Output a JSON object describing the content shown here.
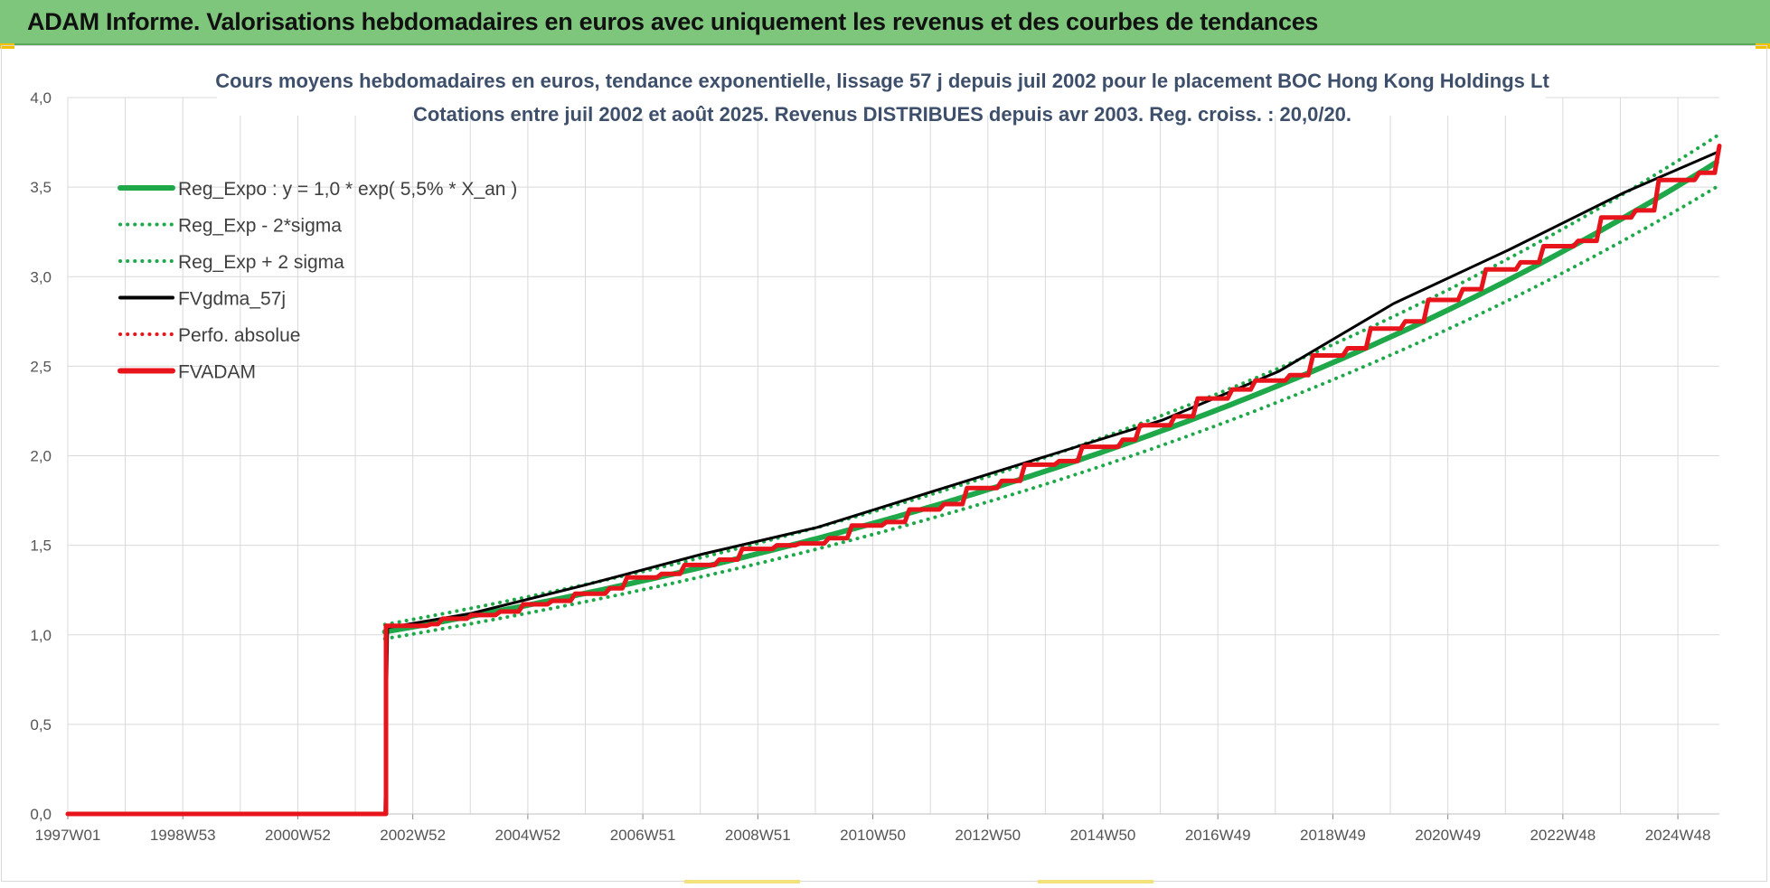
{
  "banner": {
    "title": "ADAM Informe. Valorisations hebdomadaires en euros avec uniquement les revenus et des courbes de tendances"
  },
  "colors": {
    "banner_bg": "#7dc67b",
    "trend_green": "#1fa84a",
    "band_green": "#1fa84a",
    "smooth_black": "#000000",
    "adam_red": "#e8141b",
    "grid": "#d9d9d9"
  },
  "chart_data": {
    "type": "line",
    "title": "Cours moyens hebdomadaires en euros, tendance exponentielle, lissage 57 j depuis juil 2002 pour le placement BOC Hong Kong Holdings Lt",
    "subtitle": "Cotations entre juil 2002 et août 2025. Revenus DISTRIBUES depuis avr 2003. Reg. croiss. : 20,0/20.",
    "xlabel": "",
    "ylabel": "",
    "x_tick_labels": [
      "1997W01",
      "1998W53",
      "2000W52",
      "2002W52",
      "2004W52",
      "2006W51",
      "2008W51",
      "2010W50",
      "2012W50",
      "2014W50",
      "2016W49",
      "2018W49",
      "2020W49",
      "2022W48",
      "2024W48"
    ],
    "x_range_years": [
      1997.0,
      2025.65
    ],
    "ylim": [
      0,
      4
    ],
    "y_ticks": [
      "0,0",
      "0,5",
      "1,0",
      "1,5",
      "2,0",
      "2,5",
      "3,0",
      "3,5",
      "4,0"
    ],
    "grid": true,
    "legend_position": "top-left",
    "series": [
      {
        "name": "Reg_Expo : y = 1,0 * exp( 5,5% *  X_an )",
        "style": "solid-thick",
        "color": "#1fa84a",
        "x_start": 2002.5,
        "x_end": 2025.65,
        "y_start": 1.03,
        "y_end": 3.68,
        "note_values": [
          [
            2002.5,
            1.03
          ],
          [
            2006.0,
            1.29
          ],
          [
            2010.0,
            1.61
          ],
          [
            2014.0,
            2.01
          ],
          [
            2018.0,
            2.51
          ],
          [
            2022.0,
            3.13
          ],
          [
            2025.65,
            3.68
          ]
        ]
      },
      {
        "name": "Reg_Exp - 2*sigma",
        "style": "dotted",
        "color": "#1fa84a",
        "values": [
          [
            2002.5,
            0.99
          ],
          [
            2006.0,
            1.24
          ],
          [
            2010.0,
            1.55
          ],
          [
            2014.0,
            1.94
          ],
          [
            2018.0,
            2.42
          ],
          [
            2022.0,
            3.02
          ],
          [
            2025.65,
            3.55
          ]
        ]
      },
      {
        "name": "Reg_Exp + 2 sigma",
        "style": "dotted",
        "color": "#1fa84a",
        "values": [
          [
            2002.5,
            1.08
          ],
          [
            2006.0,
            1.35
          ],
          [
            2010.0,
            1.68
          ],
          [
            2014.0,
            2.09
          ],
          [
            2018.0,
            2.61
          ],
          [
            2022.0,
            3.26
          ],
          [
            2025.65,
            3.81
          ]
        ]
      },
      {
        "name": "FVgdma_57j",
        "style": "solid",
        "color": "#000000",
        "values": [
          [
            2002.5,
            0.0
          ],
          [
            2002.55,
            1.04
          ],
          [
            2004.0,
            1.12
          ],
          [
            2006.0,
            1.28
          ],
          [
            2008.0,
            1.45
          ],
          [
            2010.0,
            1.6
          ],
          [
            2012.0,
            1.8
          ],
          [
            2014.0,
            2.0
          ],
          [
            2016.0,
            2.2
          ],
          [
            2018.0,
            2.47
          ],
          [
            2020.0,
            2.85
          ],
          [
            2022.0,
            3.15
          ],
          [
            2024.0,
            3.47
          ],
          [
            2025.65,
            3.7
          ]
        ]
      },
      {
        "name": "Perfo. absolue",
        "style": "dotted",
        "color": "#e8141b",
        "values": [
          [
            1997.0,
            0.0
          ],
          [
            2002.5,
            0.0
          ]
        ]
      },
      {
        "name": "FVADAM",
        "style": "solid-thick-step",
        "color": "#e8141b",
        "values": [
          [
            1997.0,
            0.0
          ],
          [
            2002.52,
            0.0
          ],
          [
            2002.52,
            1.05
          ],
          [
            2003.3,
            1.06
          ],
          [
            2003.5,
            1.09
          ],
          [
            2004.0,
            1.11
          ],
          [
            2004.5,
            1.13
          ],
          [
            2004.9,
            1.17
          ],
          [
            2005.4,
            1.19
          ],
          [
            2005.8,
            1.23
          ],
          [
            2006.4,
            1.26
          ],
          [
            2006.7,
            1.32
          ],
          [
            2007.3,
            1.34
          ],
          [
            2007.7,
            1.39
          ],
          [
            2008.3,
            1.42
          ],
          [
            2008.7,
            1.48
          ],
          [
            2009.3,
            1.5
          ],
          [
            2009.7,
            1.51
          ],
          [
            2010.2,
            1.54
          ],
          [
            2010.6,
            1.61
          ],
          [
            2011.2,
            1.63
          ],
          [
            2011.6,
            1.7
          ],
          [
            2012.2,
            1.73
          ],
          [
            2012.6,
            1.82
          ],
          [
            2013.2,
            1.86
          ],
          [
            2013.6,
            1.95
          ],
          [
            2014.2,
            1.97
          ],
          [
            2014.6,
            2.05
          ],
          [
            2015.3,
            2.09
          ],
          [
            2015.6,
            2.17
          ],
          [
            2016.2,
            2.22
          ],
          [
            2016.6,
            2.32
          ],
          [
            2017.2,
            2.37
          ],
          [
            2017.6,
            2.42
          ],
          [
            2018.2,
            2.45
          ],
          [
            2018.6,
            2.56
          ],
          [
            2019.2,
            2.6
          ],
          [
            2019.6,
            2.71
          ],
          [
            2020.2,
            2.75
          ],
          [
            2020.6,
            2.87
          ],
          [
            2021.2,
            2.93
          ],
          [
            2021.6,
            3.04
          ],
          [
            2022.2,
            3.08
          ],
          [
            2022.6,
            3.17
          ],
          [
            2023.2,
            3.2
          ],
          [
            2023.6,
            3.33
          ],
          [
            2024.2,
            3.37
          ],
          [
            2024.6,
            3.54
          ],
          [
            2025.3,
            3.58
          ],
          [
            2025.65,
            3.73
          ]
        ]
      }
    ]
  }
}
